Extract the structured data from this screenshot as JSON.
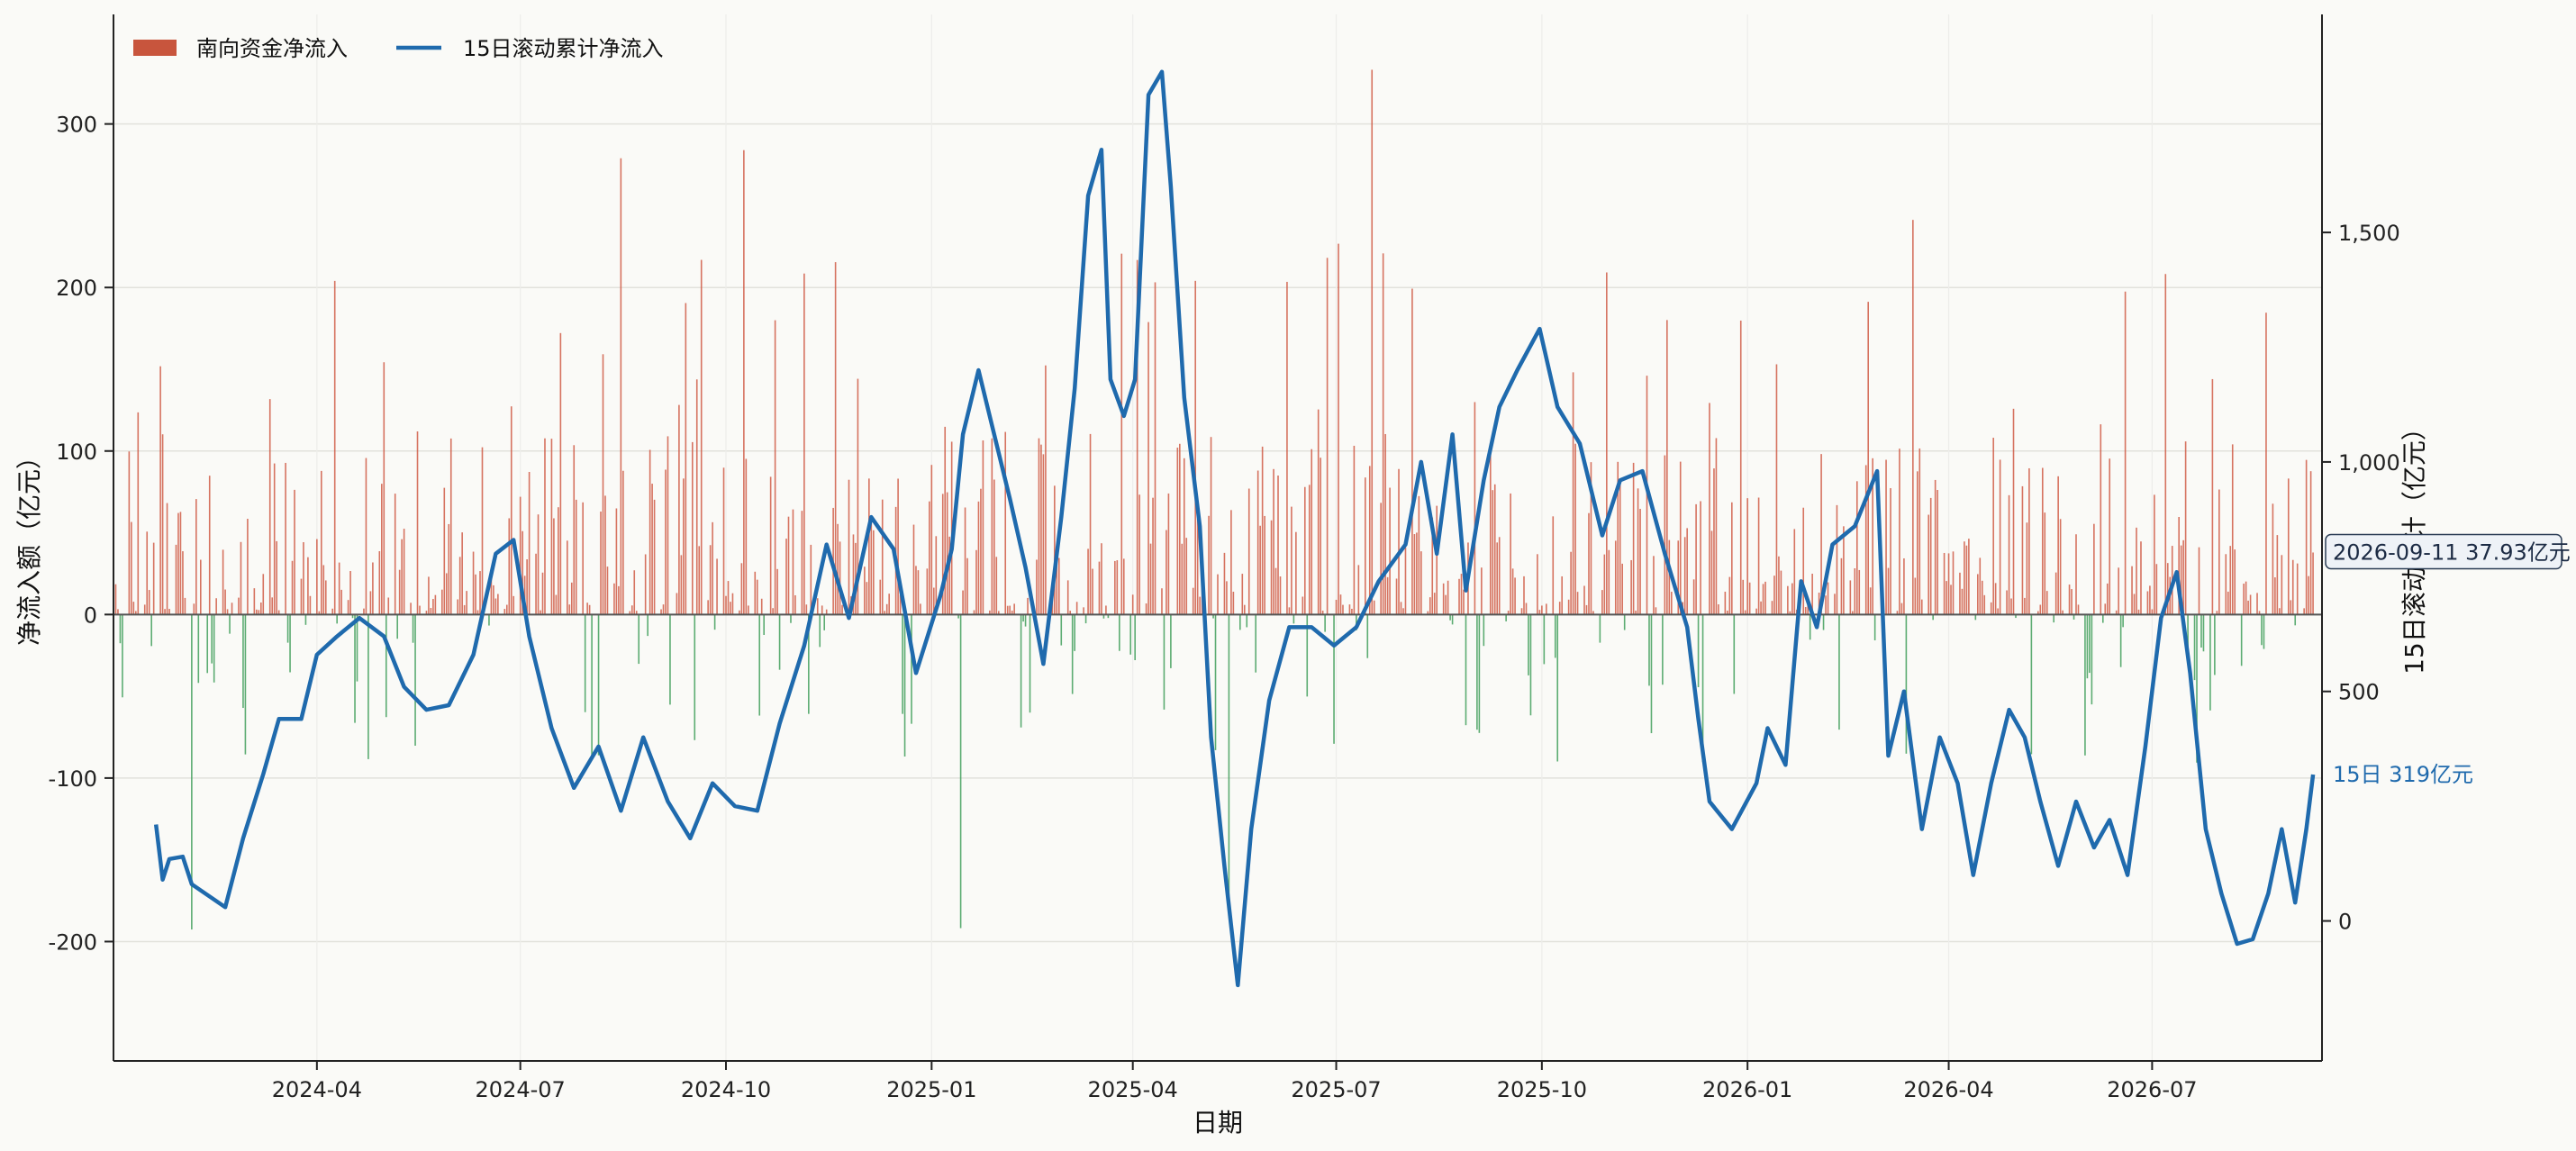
{
  "chart_data": {
    "type": "bar+line",
    "title": "",
    "xlabel": "日期",
    "ylabel": "净流入额（亿元）",
    "y2label": "15日滚动累计（亿元）",
    "x_ticks": [
      "2024-04",
      "2024-07",
      "2024-10",
      "2025-01",
      "2025-04",
      "2025-07",
      "2025-10",
      "2026-01",
      "2026-04",
      "2026-07"
    ],
    "y_ticks": [
      -200,
      -100,
      0,
      100,
      200,
      300
    ],
    "y_tick_labels": [
      "-200",
      "-100",
      "0",
      "100",
      "200",
      "300"
    ],
    "y2_ticks": [
      0,
      500,
      1000,
      1500
    ],
    "y2_tick_labels": [
      "0",
      "500",
      "1,000",
      "1,500"
    ],
    "ylim": [
      -273,
      367
    ],
    "y2lim": [
      -305,
      1975
    ],
    "xlim": [
      "2024-01-01",
      "2026-09-15"
    ],
    "grid": true,
    "legend_position": "top-left",
    "colors": {
      "positive": "#c8553d",
      "negative": "#3a9a55",
      "line": "#1f6aad",
      "background": "#fafaf7"
    },
    "series": [
      {
        "name": "南向资金净流入",
        "type": "bar",
        "axis": "left",
        "generated": "daily",
        "start": "2024-01-02",
        "end": "2026-09-11",
        "values": []
      },
      {
        "name": "15日滚动累计净流入",
        "type": "line",
        "axis": "right",
        "points": [
          [
            "2024-01-20",
            210
          ],
          [
            "2024-01-23",
            90
          ],
          [
            "2024-01-26",
            135
          ],
          [
            "2024-02-01",
            140
          ],
          [
            "2024-02-05",
            80
          ],
          [
            "2024-02-20",
            30
          ],
          [
            "2024-02-28",
            180
          ],
          [
            "2024-03-08",
            320
          ],
          [
            "2024-03-15",
            440
          ],
          [
            "2024-03-25",
            440
          ],
          [
            "2024-04-01",
            580
          ],
          [
            "2024-04-10",
            620
          ],
          [
            "2024-04-20",
            660
          ],
          [
            "2024-05-01",
            620
          ],
          [
            "2024-05-10",
            510
          ],
          [
            "2024-05-20",
            460
          ],
          [
            "2024-05-30",
            470
          ],
          [
            "2024-06-10",
            580
          ],
          [
            "2024-06-20",
            800
          ],
          [
            "2024-06-28",
            830
          ],
          [
            "2024-07-05",
            620
          ],
          [
            "2024-07-15",
            420
          ],
          [
            "2024-07-25",
            290
          ],
          [
            "2024-08-05",
            380
          ],
          [
            "2024-08-15",
            240
          ],
          [
            "2024-08-25",
            400
          ],
          [
            "2024-09-05",
            260
          ],
          [
            "2024-09-15",
            180
          ],
          [
            "2024-09-25",
            300
          ],
          [
            "2024-10-05",
            250
          ],
          [
            "2024-10-15",
            240
          ],
          [
            "2024-10-25",
            430
          ],
          [
            "2024-11-05",
            600
          ],
          [
            "2024-11-15",
            820
          ],
          [
            "2024-11-25",
            660
          ],
          [
            "2024-12-05",
            880
          ],
          [
            "2024-12-15",
            810
          ],
          [
            "2024-12-25",
            540
          ],
          [
            "2025-01-05",
            710
          ],
          [
            "2025-01-10",
            810
          ],
          [
            "2025-01-15",
            1060
          ],
          [
            "2025-01-22",
            1200
          ],
          [
            "2025-01-28",
            1080
          ],
          [
            "2025-02-05",
            920
          ],
          [
            "2025-02-12",
            770
          ],
          [
            "2025-02-20",
            560
          ],
          [
            "2025-02-28",
            880
          ],
          [
            "2025-03-06",
            1160
          ],
          [
            "2025-03-12",
            1580
          ],
          [
            "2025-03-18",
            1680
          ],
          [
            "2025-03-22",
            1180
          ],
          [
            "2025-03-28",
            1100
          ],
          [
            "2025-04-02",
            1180
          ],
          [
            "2025-04-08",
            1800
          ],
          [
            "2025-04-14",
            1850
          ],
          [
            "2025-04-18",
            1600
          ],
          [
            "2025-04-24",
            1140
          ],
          [
            "2025-05-01",
            860
          ],
          [
            "2025-05-06",
            400
          ],
          [
            "2025-05-12",
            120
          ],
          [
            "2025-05-18",
            -140
          ],
          [
            "2025-05-24",
            200
          ],
          [
            "2025-06-01",
            480
          ],
          [
            "2025-06-10",
            640
          ],
          [
            "2025-06-20",
            640
          ],
          [
            "2025-06-30",
            600
          ],
          [
            "2025-07-10",
            640
          ],
          [
            "2025-07-20",
            740
          ],
          [
            "2025-08-01",
            820
          ],
          [
            "2025-08-08",
            1000
          ],
          [
            "2025-08-15",
            800
          ],
          [
            "2025-08-22",
            1060
          ],
          [
            "2025-08-28",
            720
          ],
          [
            "2025-09-05",
            960
          ],
          [
            "2025-09-12",
            1120
          ],
          [
            "2025-09-20",
            1200
          ],
          [
            "2025-09-30",
            1290
          ],
          [
            "2025-10-08",
            1120
          ],
          [
            "2025-10-18",
            1040
          ],
          [
            "2025-10-28",
            840
          ],
          [
            "2025-11-05",
            960
          ],
          [
            "2025-11-15",
            980
          ],
          [
            "2025-11-25",
            800
          ],
          [
            "2025-12-05",
            640
          ],
          [
            "2025-12-10",
            440
          ],
          [
            "2025-12-15",
            260
          ],
          [
            "2025-12-25",
            200
          ],
          [
            "2026-01-05",
            300
          ],
          [
            "2026-01-10",
            420
          ],
          [
            "2026-01-18",
            340
          ],
          [
            "2026-01-25",
            740
          ],
          [
            "2026-02-01",
            640
          ],
          [
            "2026-02-08",
            820
          ],
          [
            "2026-02-18",
            860
          ],
          [
            "2026-02-28",
            980
          ],
          [
            "2026-03-05",
            360
          ],
          [
            "2026-03-12",
            500
          ],
          [
            "2026-03-20",
            200
          ],
          [
            "2026-03-28",
            400
          ],
          [
            "2026-04-05",
            300
          ],
          [
            "2026-04-12",
            100
          ],
          [
            "2026-04-20",
            300
          ],
          [
            "2026-04-28",
            460
          ],
          [
            "2026-05-05",
            400
          ],
          [
            "2026-05-12",
            260
          ],
          [
            "2026-05-20",
            120
          ],
          [
            "2026-05-28",
            260
          ],
          [
            "2026-06-05",
            160
          ],
          [
            "2026-06-12",
            220
          ],
          [
            "2026-06-20",
            100
          ],
          [
            "2026-06-28",
            380
          ],
          [
            "2026-07-05",
            660
          ],
          [
            "2026-07-12",
            760
          ],
          [
            "2026-07-18",
            540
          ],
          [
            "2026-07-25",
            200
          ],
          [
            "2026-08-01",
            60
          ],
          [
            "2026-08-08",
            -50
          ],
          [
            "2026-08-15",
            -40
          ],
          [
            "2026-08-22",
            60
          ],
          [
            "2026-08-28",
            200
          ],
          [
            "2026-09-03",
            40
          ],
          [
            "2026-09-08",
            200
          ],
          [
            "2026-09-11",
            319
          ]
        ]
      }
    ],
    "annotations": [
      {
        "text": "2026-09-11  37.93亿元",
        "axis": "left",
        "value": 37.93
      },
      {
        "text": "15日 319亿元",
        "axis": "right",
        "value": 319
      }
    ]
  }
}
